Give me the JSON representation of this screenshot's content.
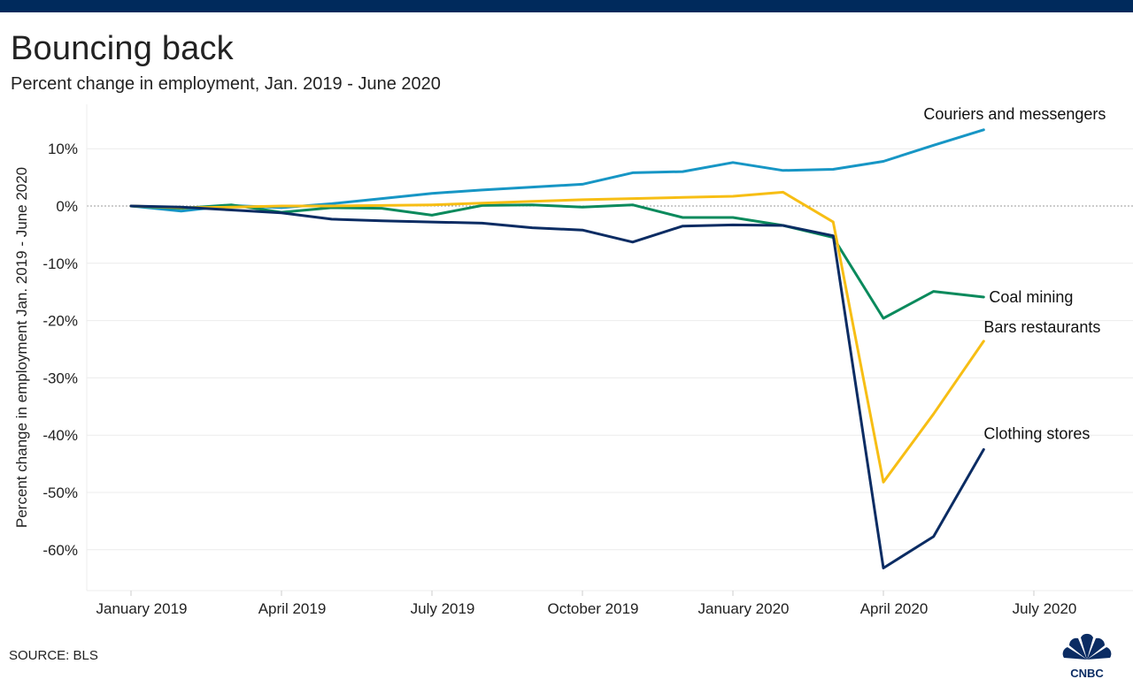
{
  "title": "Bouncing back",
  "subtitle": "Percent change in employment, Jan. 2019 - June 2020",
  "source": "SOURCE: BLS",
  "logo_text": "CNBC",
  "chart_data": {
    "type": "line",
    "title": "Bouncing back",
    "subtitle": "Percent change in employment, Jan. 2019 - June 2020",
    "ylabel": "Percent change in employment Jan. 2019 - June 2020",
    "xlabel": "",
    "x": [
      "2019-01",
      "2019-02",
      "2019-03",
      "2019-04",
      "2019-05",
      "2019-06",
      "2019-07",
      "2019-08",
      "2019-09",
      "2019-10",
      "2019-11",
      "2019-12",
      "2020-01",
      "2020-02",
      "2020-03",
      "2020-04",
      "2020-05",
      "2020-06"
    ],
    "x_ticks": [
      {
        "x": "2019-01",
        "label": "January 2019"
      },
      {
        "x": "2019-04",
        "label": "April 2019"
      },
      {
        "x": "2019-07",
        "label": "July 2019"
      },
      {
        "x": "2019-10",
        "label": "October 2019"
      },
      {
        "x": "2020-01",
        "label": "January 2020"
      },
      {
        "x": "2020-04",
        "label": "April 2020"
      },
      {
        "x": "2020-07",
        "label": "July 2020"
      }
    ],
    "y_ticks": [
      {
        "value": 10,
        "label": "10%"
      },
      {
        "value": 0,
        "label": "0%"
      },
      {
        "value": -10,
        "label": "-10%"
      },
      {
        "value": -20,
        "label": "-20%"
      },
      {
        "value": -30,
        "label": "-30%"
      },
      {
        "value": -40,
        "label": "-40%"
      },
      {
        "value": -50,
        "label": "-50%"
      },
      {
        "value": -60,
        "label": "-60%"
      }
    ],
    "xlim": [
      "2018-12",
      "2020-08"
    ],
    "ylim": [
      -67,
      17
    ],
    "grid": true,
    "legend": "direct labels at line ends",
    "series": [
      {
        "name": "Couriers and messengers",
        "color": "#1796c5",
        "values": [
          0,
          -0.9,
          0.1,
          -0.3,
          0.4,
          1.3,
          2.2,
          2.8,
          3.3,
          3.8,
          5.8,
          6.0,
          7.6,
          6.2,
          6.4,
          7.8,
          10.6,
          13.3
        ]
      },
      {
        "name": "Coal mining",
        "color": "#0a8a5c",
        "values": [
          0,
          -0.4,
          0.2,
          -1.1,
          -0.3,
          -0.4,
          -1.6,
          0.1,
          0.2,
          -0.2,
          0.2,
          -2.0,
          -2.0,
          -3.4,
          -5.5,
          -19.6,
          -14.9,
          -15.9
        ]
      },
      {
        "name": "Bars restaurants",
        "color": "#f7be14",
        "values": [
          0,
          -0.3,
          -0.2,
          0,
          0,
          0.1,
          0.2,
          0.5,
          0.8,
          1.1,
          1.3,
          1.5,
          1.7,
          2.4,
          -2.8,
          -48.2,
          -36.3,
          -23.6
        ]
      },
      {
        "name": "Clothing stores",
        "color": "#0b2c63",
        "values": [
          0,
          -0.2,
          -0.7,
          -1.2,
          -2.3,
          -2.6,
          -2.8,
          -3.0,
          -3.8,
          -4.2,
          -6.3,
          -3.5,
          -3.3,
          -3.4,
          -5.2,
          -63.2,
          -57.7,
          -42.5
        ]
      }
    ]
  },
  "colors": {
    "header_bar": "#002a5c",
    "text": "#222222",
    "grid": "#ececec",
    "zero_line": "#9a9a9a"
  }
}
